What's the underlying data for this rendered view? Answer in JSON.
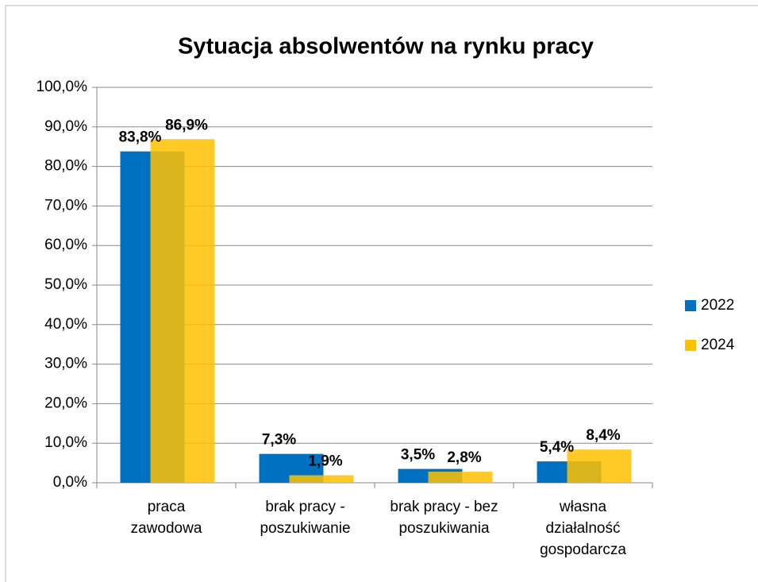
{
  "chart_data": {
    "type": "bar",
    "title": "Sytuacja absolwentów na rynku pracy",
    "categories": [
      "praca\nzawodowa",
      "brak pracy -\nposzukiwanie",
      "brak pracy - bez\nposzukiwania",
      "własna\ndziałalność\ngospodarcza"
    ],
    "series": [
      {
        "name": "2022",
        "color": "#0070c0",
        "values": [
          83.8,
          7.3,
          3.5,
          5.4
        ],
        "value_labels": [
          "83,8%",
          "7,3%",
          "3,5%",
          "5,4%"
        ]
      },
      {
        "name": "2024",
        "color": "#ffc000",
        "values": [
          86.9,
          1.9,
          2.8,
          8.4
        ],
        "value_labels": [
          "86,9%",
          "1,9%",
          "2,8%",
          "8,4%"
        ]
      }
    ],
    "ylim": [
      0,
      100
    ],
    "yticks": [
      {
        "value": 0,
        "label": "0,0%"
      },
      {
        "value": 10,
        "label": "10,0%"
      },
      {
        "value": 20,
        "label": "20,0%"
      },
      {
        "value": 30,
        "label": "30,0%"
      },
      {
        "value": 40,
        "label": "40,0%"
      },
      {
        "value": 50,
        "label": "50,0%"
      },
      {
        "value": 60,
        "label": "60,0%"
      },
      {
        "value": 70,
        "label": "70,0%"
      },
      {
        "value": 80,
        "label": "80,0%"
      },
      {
        "value": 90,
        "label": "90,0%"
      },
      {
        "value": 100,
        "label": "100,0%"
      }
    ],
    "grid": true,
    "legend": "right"
  }
}
